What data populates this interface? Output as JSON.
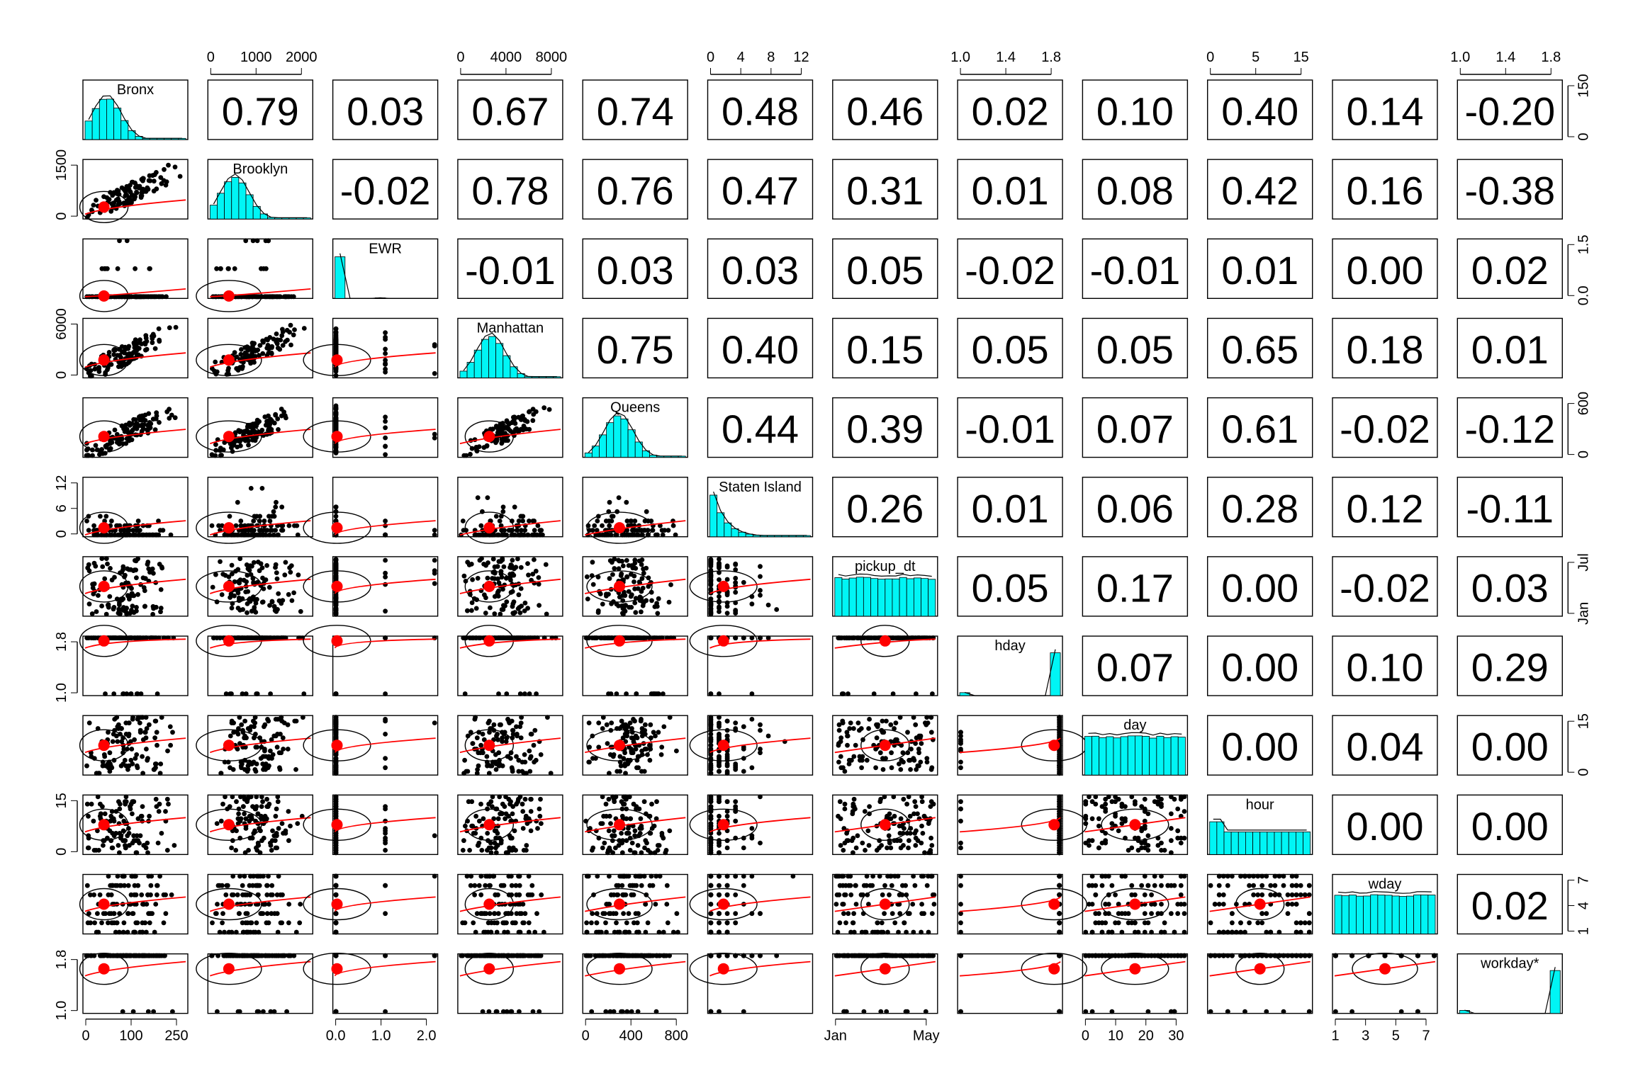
{
  "chart_data": {
    "type": "scatter",
    "subtype": "pairs-panels (scatterplot matrix with histograms on the diagonal and correlations in the upper triangle)",
    "variables": [
      "Bronx",
      "Brooklyn",
      "EWR",
      "Manhattan",
      "Queens",
      "Staten Island",
      "pickup_dt",
      "hday",
      "day",
      "hour",
      "wday",
      "workday*"
    ],
    "diagonal_labels": [
      "Bronx",
      "Brooklyn",
      "EWR",
      "Manhattan",
      "Queens",
      "Staten Island",
      "pickup_dt",
      "hday",
      "day",
      "hour",
      "wday",
      "workday*"
    ],
    "correlations": [
      [
        "0.79",
        "0.03",
        "0.67",
        "0.74",
        "0.48",
        "0.46",
        "0.02",
        "0.10",
        "0.40",
        "0.14",
        "-0.20"
      ],
      [
        "-0.02",
        "0.78",
        "0.76",
        "0.47",
        "0.31",
        "0.01",
        "0.08",
        "0.42",
        "0.16",
        "-0.38"
      ],
      [
        "-0.01",
        "0.03",
        "0.03",
        "0.05",
        "-0.02",
        "-0.01",
        "0.01",
        "0.00",
        "0.02"
      ],
      [
        "0.75",
        "0.40",
        "0.15",
        "0.05",
        "0.05",
        "0.65",
        "0.18",
        "0.01"
      ],
      [
        "0.44",
        "0.39",
        "-0.01",
        "0.07",
        "0.61",
        "-0.02",
        "-0.12"
      ],
      [
        "0.26",
        "0.01",
        "0.06",
        "0.28",
        "0.12",
        "-0.11"
      ],
      [
        "0.05",
        "0.17",
        "0.00",
        "-0.02",
        "0.03"
      ],
      [
        "0.07",
        "0.00",
        "0.10",
        "0.29"
      ],
      [
        "0.00",
        "0.04",
        "0.00"
      ],
      [
        "0.00",
        "0.00"
      ],
      [
        "0.02"
      ]
    ],
    "axes": {
      "top": [
        {
          "column": 1,
          "ticks": [
            "0",
            "1000",
            "2000"
          ]
        },
        {
          "column": 3,
          "ticks": [
            "0",
            "4000",
            "8000"
          ]
        },
        {
          "column": 5,
          "ticks": [
            "0",
            "4",
            "8",
            "12"
          ]
        },
        {
          "column": 7,
          "ticks": [
            "1.0",
            "1.4",
            "1.8"
          ]
        },
        {
          "column": 9,
          "ticks": [
            "0",
            "5",
            "15"
          ]
        },
        {
          "column": 11,
          "ticks": [
            "1.0",
            "1.4",
            "1.8"
          ]
        }
      ],
      "bottom": [
        {
          "column": 0,
          "ticks": [
            "0",
            "100",
            "250"
          ]
        },
        {
          "column": 2,
          "ticks": [
            "0.0",
            "1.0",
            "2.0"
          ]
        },
        {
          "column": 4,
          "ticks": [
            "0",
            "400",
            "800"
          ]
        },
        {
          "column": 6,
          "ticks": [
            "Jan",
            "May"
          ]
        },
        {
          "column": 8,
          "ticks": [
            "0",
            "10",
            "20",
            "30"
          ]
        },
        {
          "column": 10,
          "ticks": [
            "1",
            "3",
            "5",
            "7"
          ]
        }
      ],
      "left": [
        {
          "row": 1,
          "ticks": [
            "0",
            "1500"
          ]
        },
        {
          "row": 3,
          "ticks": [
            "0",
            "6000"
          ]
        },
        {
          "row": 5,
          "ticks": [
            "0",
            "6",
            "12"
          ]
        },
        {
          "row": 7,
          "ticks": [
            "1.0",
            "1.8"
          ]
        },
        {
          "row": 9,
          "ticks": [
            "0",
            "15"
          ]
        },
        {
          "row": 11,
          "ticks": [
            "1.0",
            "1.8"
          ]
        }
      ],
      "right": [
        {
          "row": 0,
          "ticks": [
            "0",
            "150"
          ]
        },
        {
          "row": 2,
          "ticks": [
            "0.0",
            "1.5"
          ]
        },
        {
          "row": 4,
          "ticks": [
            "0",
            "600"
          ]
        },
        {
          "row": 6,
          "ticks": [
            "Jan",
            "Jul"
          ]
        },
        {
          "row": 8,
          "ticks": [
            "0",
            "15"
          ]
        },
        {
          "row": 10,
          "ticks": [
            "1",
            "4",
            "7"
          ]
        }
      ]
    },
    "colors": {
      "histogram_fill": "#00f5f5",
      "points": "#000000",
      "smoother": "#ff0000",
      "centroid": "#ff0000",
      "frame": "#000000"
    }
  }
}
